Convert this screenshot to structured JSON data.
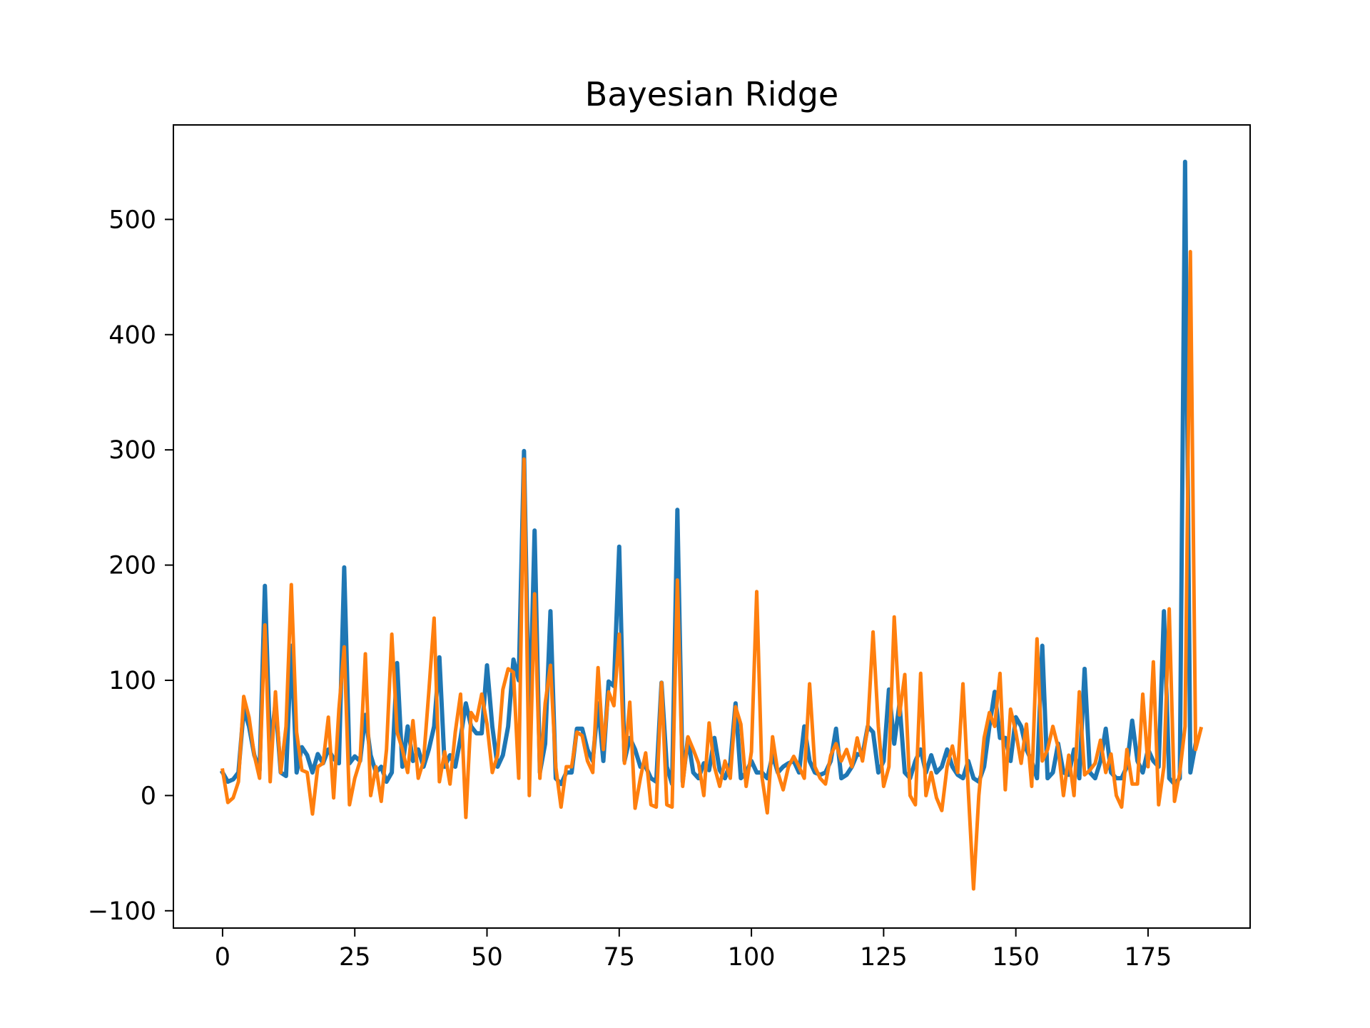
{
  "chart_data": {
    "type": "line",
    "title": "Bayesian Ridge",
    "xlabel": "",
    "ylabel": "",
    "xlim": [
      -9.3,
      194.3
    ],
    "ylim": [
      -115,
      582
    ],
    "x_ticks": [
      0,
      25,
      50,
      75,
      100,
      125,
      150,
      175
    ],
    "x_tick_labels": [
      "0",
      "25",
      "50",
      "75",
      "100",
      "125",
      "150",
      "175"
    ],
    "y_ticks": [
      -100,
      0,
      100,
      200,
      300,
      400,
      500
    ],
    "y_tick_labels": [
      "−100",
      "0",
      "100",
      "200",
      "300",
      "400",
      "500"
    ],
    "grid": false,
    "legend": "none",
    "series": [
      {
        "color": "#1f77b4",
        "values": [
          20,
          12,
          14,
          20,
          75,
          60,
          35,
          22,
          182,
          40,
          80,
          20,
          17,
          130,
          20,
          42,
          35,
          20,
          36,
          28,
          40,
          32,
          28,
          198,
          28,
          34,
          30,
          70,
          35,
          20,
          25,
          12,
          20,
          115,
          25,
          60,
          30,
          40,
          25,
          40,
          60,
          120,
          25,
          35,
          25,
          50,
          80,
          60,
          54,
          54,
          113,
          60,
          25,
          35,
          60,
          118,
          100,
          299,
          50,
          230,
          20,
          45,
          160,
          15,
          10,
          20,
          20,
          58,
          58,
          40,
          30,
          80,
          30,
          99,
          95,
          216,
          30,
          50,
          40,
          25,
          25,
          15,
          12,
          98,
          25,
          10,
          248,
          12,
          50,
          20,
          15,
          28,
          22,
          50,
          22,
          15,
          28,
          80,
          15,
          20,
          30,
          20,
          20,
          15,
          35,
          20,
          25,
          28,
          30,
          20,
          60,
          30,
          20,
          18,
          20,
          30,
          58,
          15,
          18,
          25,
          36,
          35,
          60,
          55,
          20,
          30,
          92,
          45,
          80,
          20,
          15,
          30,
          40,
          20,
          35,
          20,
          25,
          40,
          25,
          18,
          15,
          30,
          15,
          12,
          25,
          60,
          90,
          50,
          50,
          30,
          68,
          60,
          40,
          30,
          15,
          130,
          15,
          20,
          45,
          20,
          18,
          40,
          15,
          110,
          20,
          15,
          30,
          58,
          20,
          15,
          15,
          25,
          65,
          30,
          20,
          40,
          30,
          25,
          160,
          15,
          10,
          15,
          550,
          20,
          45
        ]
      },
      {
        "color": "#ff7f0e",
        "values": [
          22,
          -6,
          -2,
          12,
          86,
          68,
          35,
          15,
          148,
          12,
          90,
          20,
          60,
          183,
          55,
          22,
          20,
          -16,
          25,
          28,
          68,
          -2,
          75,
          129,
          -8,
          15,
          30,
          123,
          0,
          25,
          -5,
          40,
          140,
          55,
          40,
          20,
          65,
          15,
          30,
          90,
          154,
          12,
          38,
          10,
          55,
          88,
          -19,
          72,
          65,
          88,
          62,
          20,
          35,
          92,
          110,
          107,
          15,
          292,
          0,
          175,
          15,
          80,
          113,
          25,
          -10,
          25,
          25,
          55,
          52,
          30,
          20,
          111,
          40,
          90,
          78,
          140,
          28,
          81,
          -11,
          15,
          37,
          -8,
          -10,
          98,
          -8,
          -10,
          187,
          8,
          51,
          40,
          28,
          0,
          63,
          25,
          8,
          30,
          15,
          77,
          62,
          8,
          38,
          177,
          16,
          -15,
          51,
          20,
          5,
          25,
          34,
          25,
          15,
          97,
          25,
          15,
          10,
          35,
          45,
          30,
          40,
          25,
          50,
          30,
          60,
          142,
          60,
          8,
          25,
          155,
          70,
          105,
          0,
          -8,
          106,
          0,
          20,
          -2,
          -13,
          25,
          43,
          20,
          97,
          5,
          -81,
          0,
          50,
          72,
          60,
          106,
          5,
          75,
          55,
          28,
          62,
          8,
          136,
          30,
          40,
          60,
          42,
          0,
          35,
          0,
          90,
          18,
          22,
          28,
          48,
          20,
          36,
          0,
          -10,
          40,
          10,
          10,
          88,
          25,
          116,
          -8,
          25,
          162,
          -5,
          20,
          60,
          472,
          40,
          58
        ]
      }
    ]
  }
}
